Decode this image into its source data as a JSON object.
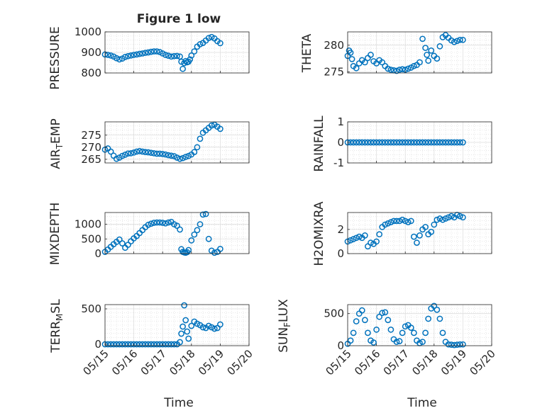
{
  "title": "Figure 1 low",
  "marker_color": "#0072bd",
  "chart_data": [
    {
      "type": "scatter",
      "ylabel": "PRESSURE",
      "ylim": [
        800,
        1000
      ],
      "yticks": [
        800,
        900,
        1000
      ],
      "xlim": [
        0,
        5
      ],
      "xticks": [
        0,
        1,
        2,
        3,
        4,
        5
      ],
      "x": [
        0,
        0.1,
        0.2,
        0.3,
        0.4,
        0.5,
        0.6,
        0.7,
        0.8,
        0.9,
        1.0,
        1.1,
        1.2,
        1.3,
        1.4,
        1.5,
        1.6,
        1.7,
        1.8,
        1.9,
        2.0,
        2.1,
        2.2,
        2.3,
        2.4,
        2.5,
        2.6,
        2.65,
        2.7,
        2.75,
        2.8,
        2.85,
        2.9,
        2.95,
        3.0,
        3.1,
        3.2,
        3.3,
        3.4,
        3.5,
        3.6,
        3.7,
        3.8,
        3.9,
        4.0
      ],
      "y": [
        890,
        888,
        885,
        880,
        872,
        866,
        870,
        878,
        882,
        885,
        888,
        890,
        893,
        895,
        898,
        900,
        903,
        905,
        905,
        902,
        895,
        888,
        884,
        880,
        882,
        883,
        880,
        855,
        820,
        848,
        858,
        852,
        855,
        866,
        885,
        905,
        928,
        940,
        946,
        958,
        970,
        975,
        968,
        955,
        945
      ]
    },
    {
      "type": "scatter",
      "ylabel": "THETA",
      "ylim": [
        274.8,
        282.5
      ],
      "yticks": [
        275,
        280
      ],
      "xlim": [
        0,
        5
      ],
      "xticks": [
        0,
        1,
        2,
        3,
        4,
        5
      ],
      "x": [
        0,
        0.05,
        0.1,
        0.15,
        0.2,
        0.3,
        0.4,
        0.5,
        0.6,
        0.7,
        0.8,
        0.9,
        1.0,
        1.1,
        1.2,
        1.3,
        1.4,
        1.5,
        1.6,
        1.7,
        1.8,
        1.9,
        2.0,
        2.1,
        2.2,
        2.3,
        2.4,
        2.5,
        2.6,
        2.7,
        2.75,
        2.8,
        2.9,
        3.0,
        3.1,
        3.2,
        3.3,
        3.4,
        3.5,
        3.6,
        3.7,
        3.8,
        3.9,
        4.0
      ],
      "y": [
        278,
        279,
        278.6,
        277.4,
        276.1,
        275.7,
        276.6,
        277.2,
        276.8,
        277.6,
        278.2,
        277.0,
        276.6,
        277.2,
        276.8,
        276.1,
        275.6,
        275.4,
        275.3,
        275.2,
        275.4,
        275.5,
        275.4,
        275.6,
        275.8,
        276.1,
        276.3,
        276.8,
        281.2,
        279.5,
        278.2,
        277.1,
        279.0,
        278.0,
        277.5,
        279.8,
        281.5,
        281.9,
        281.4,
        280.9,
        280.6,
        280.8,
        281.0,
        281.0
      ]
    },
    {
      "type": "scatter",
      "ylabel": "AIR_TEMP",
      "ylim": [
        263.5,
        280.5
      ],
      "yticks": [
        265,
        270,
        275
      ],
      "xlim": [
        0,
        5
      ],
      "xticks": [
        0,
        1,
        2,
        3,
        4,
        5
      ],
      "x": [
        0,
        0.1,
        0.2,
        0.3,
        0.4,
        0.5,
        0.6,
        0.7,
        0.8,
        0.9,
        1.0,
        1.1,
        1.2,
        1.3,
        1.4,
        1.5,
        1.6,
        1.7,
        1.8,
        1.9,
        2.0,
        2.1,
        2.2,
        2.3,
        2.4,
        2.5,
        2.6,
        2.7,
        2.8,
        2.9,
        3.0,
        3.1,
        3.2,
        3.3,
        3.4,
        3.5,
        3.6,
        3.7,
        3.8,
        3.9,
        4.0
      ],
      "y": [
        269,
        269.5,
        268.2,
        266.5,
        265.2,
        265.7,
        266.4,
        266.9,
        267.4,
        267.5,
        267.8,
        268.2,
        268.4,
        268.2,
        268,
        267.9,
        267.7,
        267.5,
        267.3,
        267.3,
        267.2,
        267,
        266.7,
        266.5,
        266.3,
        265.7,
        265.2,
        265.5,
        266,
        266.4,
        267,
        268,
        270,
        273.5,
        276,
        277,
        278,
        279,
        279.3,
        278.5,
        277.6
      ]
    },
    {
      "type": "scatter",
      "ylabel": "RAINFALL",
      "ylim": [
        -1,
        1
      ],
      "yticks": [
        -1,
        0,
        1
      ],
      "xlim": [
        0,
        5
      ],
      "xticks": [
        0,
        1,
        2,
        3,
        4,
        5
      ],
      "x": [
        0,
        0.1,
        0.2,
        0.3,
        0.4,
        0.5,
        0.6,
        0.7,
        0.8,
        0.9,
        1.0,
        1.1,
        1.2,
        1.3,
        1.4,
        1.5,
        1.6,
        1.7,
        1.8,
        1.9,
        2.0,
        2.1,
        2.2,
        2.3,
        2.4,
        2.5,
        2.6,
        2.7,
        2.8,
        2.9,
        3.0,
        3.1,
        3.2,
        3.3,
        3.4,
        3.5,
        3.6,
        3.7,
        3.8,
        3.9,
        4.0
      ],
      "y": [
        0,
        0,
        0,
        0,
        0,
        0,
        0,
        0,
        0,
        0,
        0,
        0,
        0,
        0,
        0,
        0,
        0,
        0,
        0,
        0,
        0,
        0,
        0,
        0,
        0,
        0,
        0,
        0,
        0,
        0,
        0,
        0,
        0,
        0,
        0,
        0,
        0,
        0,
        0,
        0,
        0
      ]
    },
    {
      "type": "scatter",
      "ylabel": "MIXDEPTH",
      "ylim": [
        0,
        1400
      ],
      "yticks": [
        0,
        500,
        1000
      ],
      "xlim": [
        0,
        5
      ],
      "xticks": [
        0,
        1,
        2,
        3,
        4,
        5
      ],
      "x": [
        0,
        0.1,
        0.2,
        0.3,
        0.4,
        0.5,
        0.6,
        0.7,
        0.8,
        0.9,
        1.0,
        1.1,
        1.2,
        1.3,
        1.4,
        1.5,
        1.6,
        1.7,
        1.8,
        1.9,
        2.0,
        2.1,
        2.2,
        2.3,
        2.4,
        2.5,
        2.6,
        2.65,
        2.7,
        2.75,
        2.8,
        2.85,
        2.9,
        3.0,
        3.1,
        3.2,
        3.3,
        3.4,
        3.5,
        3.6,
        3.7,
        3.8,
        3.9,
        4.0
      ],
      "y": [
        60,
        140,
        230,
        320,
        400,
        480,
        350,
        200,
        300,
        420,
        520,
        600,
        700,
        800,
        900,
        980,
        1020,
        1050,
        1060,
        1060,
        1050,
        1030,
        1060,
        1080,
        1000,
        950,
        820,
        150,
        60,
        40,
        30,
        50,
        120,
        450,
        650,
        800,
        1000,
        1330,
        1350,
        500,
        100,
        30,
        60,
        160
      ]
    },
    {
      "type": "scatter",
      "ylabel": "H2OMIXRA",
      "ylim": [
        0,
        3.4
      ],
      "yticks": [
        0,
        2
      ],
      "xlim": [
        0,
        5
      ],
      "xticks": [
        0,
        1,
        2,
        3,
        4,
        5
      ],
      "x": [
        0,
        0.1,
        0.2,
        0.3,
        0.4,
        0.5,
        0.6,
        0.7,
        0.8,
        0.9,
        1.0,
        1.1,
        1.2,
        1.3,
        1.4,
        1.5,
        1.6,
        1.7,
        1.8,
        1.9,
        2.0,
        2.1,
        2.2,
        2.3,
        2.4,
        2.5,
        2.6,
        2.7,
        2.8,
        2.9,
        3.0,
        3.1,
        3.2,
        3.3,
        3.4,
        3.5,
        3.6,
        3.7,
        3.8,
        3.9,
        4.0
      ],
      "y": [
        1.0,
        1.1,
        1.2,
        1.3,
        1.4,
        1.3,
        1.5,
        0.6,
        0.9,
        0.8,
        1.0,
        1.6,
        2.2,
        2.4,
        2.5,
        2.6,
        2.7,
        2.7,
        2.7,
        2.8,
        2.7,
        2.6,
        2.7,
        1.4,
        0.9,
        1.5,
        2.0,
        2.2,
        1.6,
        1.8,
        2.4,
        2.8,
        2.9,
        2.8,
        2.9,
        3.0,
        3.1,
        3.0,
        3.2,
        3.1,
        3.0
      ]
    },
    {
      "type": "scatter",
      "ylabel": "TERR_MSL",
      "ylim": [
        -20,
        560
      ],
      "yticks": [
        0,
        500
      ],
      "xlim": [
        0,
        5
      ],
      "xticks": [
        0,
        1,
        2,
        3,
        4,
        5
      ],
      "x": [
        0,
        0.1,
        0.2,
        0.3,
        0.4,
        0.5,
        0.6,
        0.7,
        0.8,
        0.9,
        1.0,
        1.1,
        1.2,
        1.3,
        1.4,
        1.5,
        1.6,
        1.7,
        1.8,
        1.9,
        2.0,
        2.1,
        2.2,
        2.3,
        2.4,
        2.5,
        2.6,
        2.65,
        2.7,
        2.75,
        2.8,
        2.85,
        2.9,
        3.0,
        3.1,
        3.2,
        3.3,
        3.4,
        3.5,
        3.6,
        3.7,
        3.8,
        3.9,
        4.0
      ],
      "y": [
        0,
        0,
        0,
        0,
        0,
        0,
        0,
        0,
        0,
        0,
        0,
        0,
        0,
        0,
        0,
        0,
        0,
        0,
        0,
        0,
        0,
        0,
        0,
        0,
        0,
        0,
        30,
        150,
        250,
        550,
        340,
        180,
        80,
        260,
        320,
        290,
        270,
        240,
        230,
        260,
        240,
        220,
        230,
        280
      ]
    },
    {
      "type": "scatter",
      "ylabel": "SUN_FLUX",
      "ylim": [
        0,
        640
      ],
      "yticks": [
        0,
        500
      ],
      "xlim": [
        0,
        5
      ],
      "xticks": [
        0,
        1,
        2,
        3,
        4,
        5
      ],
      "x": [
        0,
        0.1,
        0.2,
        0.3,
        0.4,
        0.5,
        0.6,
        0.7,
        0.8,
        0.9,
        1.0,
        1.1,
        1.2,
        1.3,
        1.4,
        1.5,
        1.6,
        1.7,
        1.8,
        1.9,
        2.0,
        2.1,
        2.2,
        2.3,
        2.4,
        2.5,
        2.6,
        2.7,
        2.8,
        2.9,
        3.0,
        3.1,
        3.2,
        3.3,
        3.4,
        3.5,
        3.6,
        3.7,
        3.8,
        3.9,
        4.0
      ],
      "y": [
        30,
        80,
        200,
        380,
        500,
        550,
        400,
        200,
        80,
        50,
        250,
        450,
        510,
        520,
        400,
        250,
        100,
        60,
        70,
        200,
        300,
        320,
        280,
        200,
        80,
        40,
        60,
        200,
        420,
        580,
        620,
        560,
        420,
        200,
        60,
        20,
        15,
        10,
        15,
        20,
        20
      ]
    }
  ],
  "xticklabels": [
    "05/15",
    "05/16",
    "05/17",
    "05/18",
    "05/19",
    "05/20"
  ],
  "xlabel": "Time"
}
